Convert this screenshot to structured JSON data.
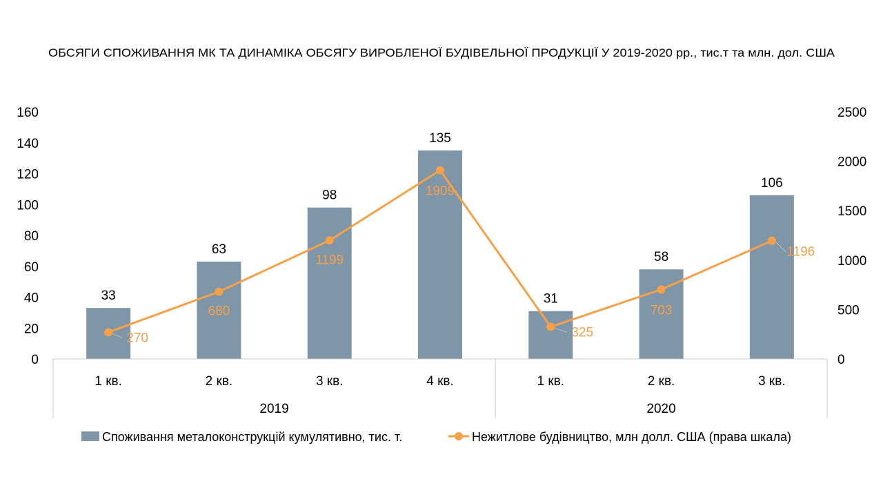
{
  "chart_data": {
    "type": "bar",
    "title": "ОБСЯГИ СПОЖИВАННЯ МК ТА ДИНАМІКА ОБСЯГУ ВИРОБЛЕНОЇ БУДІВЕЛЬНОЇ ПРОДУКЦІЇ У 2019-2020 рр., тис.т та млн. дол. США",
    "categories": [
      "1 кв.",
      "2 кв.",
      "3 кв.",
      "4 кв.",
      "1 кв.",
      "2 кв.",
      "3 кв."
    ],
    "groups": [
      {
        "label": "2019",
        "count": 4
      },
      {
        "label": "2020",
        "count": 3
      }
    ],
    "series": [
      {
        "name": "Споживання металоконструкцій кумулятивно, тис. т.",
        "type": "bar",
        "axis": "left",
        "color": "#7f96a9",
        "values": [
          33,
          63,
          98,
          135,
          31,
          58,
          106
        ]
      },
      {
        "name": "Нежитлове будівництво, млн долл. США (права шкала)",
        "type": "line",
        "axis": "right",
        "color": "#f4a14a",
        "values": [
          270,
          680,
          1199,
          1909,
          325,
          703,
          1196
        ]
      }
    ],
    "y_left": {
      "min": 0,
      "max": 160,
      "ticks": [
        0,
        20,
        40,
        60,
        80,
        100,
        120,
        140,
        160
      ]
    },
    "y_right": {
      "min": 0,
      "max": 2500,
      "ticks": [
        0,
        500,
        1000,
        1500,
        2000,
        2500
      ]
    },
    "grid": false,
    "legend_position": "bottom"
  }
}
